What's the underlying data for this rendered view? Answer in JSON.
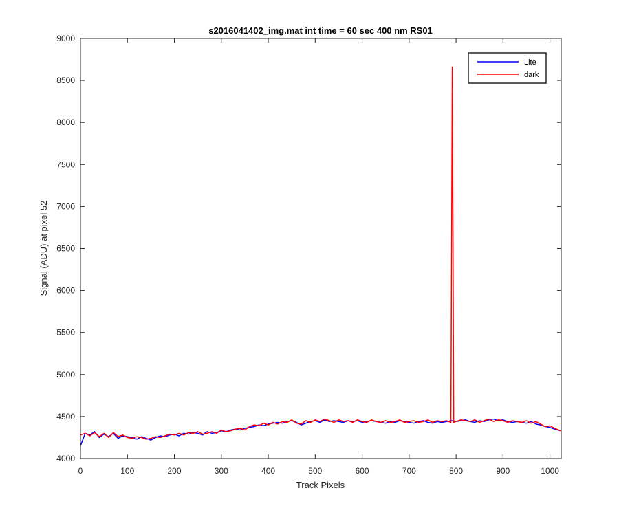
{
  "chart_data": {
    "type": "line",
    "title": "s2016041402_img.mat int time = 60 sec  400 nm RS01",
    "xlabel": "Track Pixels",
    "ylabel": "Signal (ADU) at pixel 52",
    "xlim": [
      0,
      1024
    ],
    "ylim": [
      4000,
      9000
    ],
    "xticks": [
      0,
      100,
      200,
      300,
      400,
      500,
      600,
      700,
      800,
      900,
      1000
    ],
    "yticks": [
      4000,
      4500,
      5000,
      5500,
      6000,
      6500,
      7000,
      7500,
      8000,
      8500,
      9000
    ],
    "grid": false,
    "legend_position": "top-right",
    "series": [
      {
        "name": "Lite",
        "color": "#0000ff",
        "x": [
          0,
          10,
          20,
          30,
          40,
          50,
          60,
          70,
          80,
          90,
          100,
          110,
          120,
          130,
          140,
          150,
          160,
          170,
          180,
          190,
          200,
          210,
          220,
          230,
          240,
          250,
          260,
          270,
          280,
          290,
          300,
          310,
          320,
          330,
          340,
          350,
          360,
          370,
          380,
          390,
          400,
          410,
          420,
          430,
          440,
          450,
          460,
          470,
          480,
          490,
          500,
          510,
          520,
          530,
          540,
          550,
          560,
          570,
          580,
          590,
          600,
          610,
          620,
          630,
          640,
          650,
          660,
          670,
          680,
          690,
          700,
          710,
          720,
          730,
          740,
          750,
          760,
          770,
          780,
          790,
          800,
          810,
          820,
          830,
          840,
          850,
          860,
          870,
          880,
          890,
          900,
          910,
          920,
          930,
          940,
          950,
          960,
          970,
          980,
          990,
          1000,
          1010,
          1023
        ],
        "y": [
          4150,
          4300,
          4280,
          4320,
          4250,
          4290,
          4260,
          4300,
          4240,
          4270,
          4260,
          4250,
          4230,
          4260,
          4240,
          4220,
          4250,
          4270,
          4260,
          4280,
          4290,
          4270,
          4300,
          4290,
          4310,
          4300,
          4280,
          4320,
          4300,
          4310,
          4330,
          4320,
          4340,
          4350,
          4340,
          4360,
          4370,
          4380,
          4400,
          4390,
          4410,
          4420,
          4430,
          4420,
          4440,
          4450,
          4430,
          4400,
          4420,
          4440,
          4450,
          4430,
          4460,
          4440,
          4450,
          4440,
          4430,
          4450,
          4440,
          4450,
          4430,
          4440,
          4450,
          4440,
          4430,
          4420,
          4440,
          4430,
          4450,
          4440,
          4430,
          4420,
          4440,
          4450,
          4430,
          4420,
          4440,
          4430,
          4440,
          4450,
          4440,
          4450,
          4460,
          4440,
          4430,
          4450,
          4440,
          4460,
          4470,
          4450,
          4460,
          4440,
          4430,
          4440,
          4430,
          4420,
          4440,
          4410,
          4400,
          4380,
          4370,
          4350,
          4330
        ]
      },
      {
        "name": "dark",
        "color": "#ff0000",
        "x": [
          0,
          10,
          20,
          30,
          40,
          50,
          60,
          70,
          80,
          90,
          100,
          110,
          120,
          130,
          140,
          150,
          160,
          170,
          180,
          190,
          200,
          210,
          220,
          230,
          240,
          250,
          260,
          270,
          280,
          290,
          300,
          310,
          320,
          330,
          340,
          350,
          360,
          370,
          380,
          390,
          400,
          410,
          420,
          430,
          440,
          450,
          460,
          470,
          480,
          490,
          500,
          510,
          520,
          530,
          540,
          550,
          560,
          570,
          580,
          590,
          600,
          610,
          620,
          630,
          640,
          650,
          660,
          670,
          680,
          690,
          700,
          710,
          720,
          730,
          740,
          750,
          760,
          770,
          780,
          789,
          792,
          795,
          800,
          810,
          820,
          830,
          840,
          850,
          860,
          870,
          880,
          890,
          900,
          910,
          920,
          930,
          940,
          950,
          960,
          970,
          980,
          990,
          1000,
          1010,
          1023
        ],
        "y": [
          4280,
          4300,
          4270,
          4310,
          4260,
          4300,
          4250,
          4310,
          4260,
          4280,
          4250,
          4240,
          4260,
          4250,
          4230,
          4240,
          4260,
          4250,
          4270,
          4290,
          4280,
          4300,
          4280,
          4310,
          4300,
          4320,
          4290,
          4300,
          4320,
          4300,
          4340,
          4320,
          4330,
          4350,
          4360,
          4340,
          4380,
          4400,
          4390,
          4420,
          4400,
          4430,
          4410,
          4440,
          4430,
          4460,
          4420,
          4410,
          4450,
          4430,
          4460,
          4440,
          4470,
          4450,
          4430,
          4460,
          4440,
          4450,
          4430,
          4460,
          4440,
          4430,
          4460,
          4440,
          4430,
          4450,
          4430,
          4440,
          4460,
          4430,
          4440,
          4450,
          4430,
          4440,
          4460,
          4430,
          4450,
          4440,
          4450,
          4430,
          8660,
          4430,
          4440,
          4460,
          4450,
          4440,
          4460,
          4430,
          4450,
          4470,
          4440,
          4460,
          4450,
          4430,
          4450,
          4440,
          4430,
          4450,
          4420,
          4440,
          4410,
          4380,
          4390,
          4360,
          4330
        ]
      }
    ]
  }
}
